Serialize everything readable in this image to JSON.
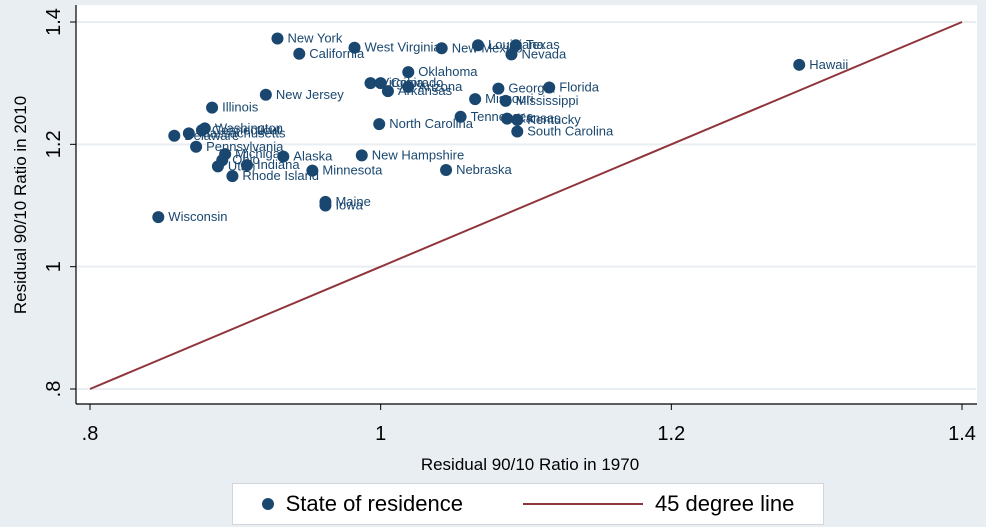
{
  "chart_data": {
    "type": "scatter",
    "title": "",
    "xlabel": "Residual 90/10 Ratio in 1970",
    "ylabel": "Residual 90/10 Ratio in 2010",
    "xlim": [
      0.8,
      1.4
    ],
    "ylim": [
      0.8,
      1.4
    ],
    "xticks": [
      ".8",
      "1",
      "1.2",
      "1.4"
    ],
    "yticks": [
      ".8",
      "1",
      "1.2",
      "1.4"
    ],
    "xtick_values": [
      0.8,
      1.0,
      1.2,
      1.4
    ],
    "ytick_values": [
      0.8,
      1.0,
      1.2,
      1.4
    ],
    "grid": "horizontal",
    "legend_position": "bottom",
    "colors": {
      "points": "#1a476f",
      "line": "#90353b",
      "grid": "#e9eef3",
      "background": "#e9eef3",
      "plot": "#ffffff"
    },
    "series": [
      {
        "name": "State of residence",
        "type": "scatter",
        "points": [
          {
            "label": "Hawaii",
            "x": 1.288,
            "y": 1.33
          },
          {
            "label": "New York",
            "x": 0.929,
            "y": 1.373
          },
          {
            "label": "California",
            "x": 0.944,
            "y": 1.348
          },
          {
            "label": "West Virginia",
            "x": 0.982,
            "y": 1.358
          },
          {
            "label": "New Mexico",
            "x": 1.042,
            "y": 1.357
          },
          {
            "label": "Louisiana",
            "x": 1.067,
            "y": 1.362
          },
          {
            "label": "Texas",
            "x": 1.093,
            "y": 1.362
          },
          {
            "label": "Nevada",
            "x": 1.09,
            "y": 1.347
          },
          {
            "label": "Oklahoma",
            "x": 1.019,
            "y": 1.318
          },
          {
            "label": "Virginia",
            "x": 0.993,
            "y": 1.3
          },
          {
            "label": "Colorado",
            "x": 1.0,
            "y": 1.3
          },
          {
            "label": "Arizona",
            "x": 1.019,
            "y": 1.294
          },
          {
            "label": "Arkansas",
            "x": 1.005,
            "y": 1.287
          },
          {
            "label": "Georgia",
            "x": 1.081,
            "y": 1.291
          },
          {
            "label": "Florida",
            "x": 1.116,
            "y": 1.293
          },
          {
            "label": "Missouri",
            "x": 1.065,
            "y": 1.274
          },
          {
            "label": "Mississippi",
            "x": 1.086,
            "y": 1.271
          },
          {
            "label": "Tennessee",
            "x": 1.055,
            "y": 1.245
          },
          {
            "label": "Kansas",
            "x": 1.087,
            "y": 1.242
          },
          {
            "label": "Kentucky",
            "x": 1.094,
            "y": 1.24
          },
          {
            "label": "South Carolina",
            "x": 1.094,
            "y": 1.221
          },
          {
            "label": "New Jersey",
            "x": 0.921,
            "y": 1.281
          },
          {
            "label": "Illinois",
            "x": 0.884,
            "y": 1.26
          },
          {
            "label": "North Carolina",
            "x": 0.999,
            "y": 1.233
          },
          {
            "label": "Washington",
            "x": 0.879,
            "y": 1.226
          },
          {
            "label": "Connecticut",
            "x": 0.877,
            "y": 1.223
          },
          {
            "label": "Massachusetts",
            "x": 0.868,
            "y": 1.218
          },
          {
            "label": "Delaware",
            "x": 0.858,
            "y": 1.214
          },
          {
            "label": "Pennsylvania",
            "x": 0.873,
            "y": 1.196
          },
          {
            "label": "Michigan",
            "x": 0.893,
            "y": 1.184
          },
          {
            "label": "Alaska",
            "x": 0.933,
            "y": 1.18
          },
          {
            "label": "Ohio",
            "x": 0.891,
            "y": 1.174
          },
          {
            "label": "Indiana",
            "x": 0.908,
            "y": 1.166
          },
          {
            "label": "Utah",
            "x": 0.888,
            "y": 1.164
          },
          {
            "label": "Rhode Island",
            "x": 0.898,
            "y": 1.148
          },
          {
            "label": "Minnesota",
            "x": 0.953,
            "y": 1.157
          },
          {
            "label": "New Hampshire",
            "x": 0.987,
            "y": 1.182
          },
          {
            "label": "Nebraska",
            "x": 1.045,
            "y": 1.158
          },
          {
            "label": "Maine",
            "x": 0.962,
            "y": 1.106
          },
          {
            "label": "Iowa",
            "x": 0.962,
            "y": 1.1
          },
          {
            "label": "Wisconsin",
            "x": 0.847,
            "y": 1.081
          }
        ]
      },
      {
        "name": "45 degree line",
        "type": "line",
        "x": [
          0.8,
          1.4
        ],
        "y": [
          0.8,
          1.4
        ]
      }
    ]
  },
  "legend": {
    "points_label": "State of residence",
    "line_label": "45 degree line"
  }
}
